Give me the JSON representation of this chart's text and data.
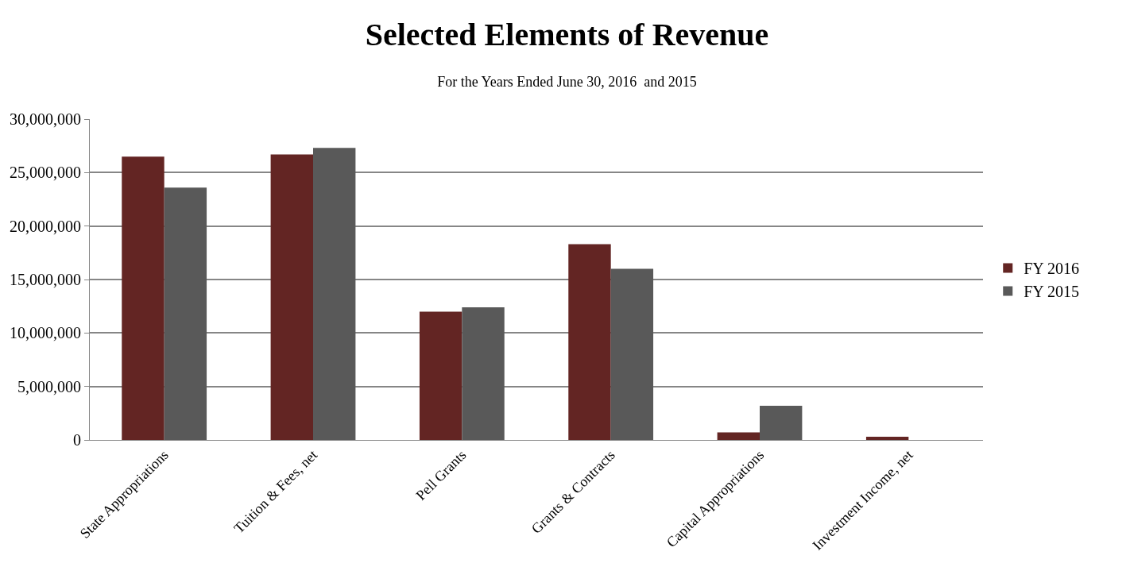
{
  "chart_data": {
    "type": "bar",
    "title": "Selected Elements of Revenue",
    "subtitle": "For the Years Ended June 30, 2016  and 2015",
    "categories": [
      "State Appropriations",
      "Tuition & Fees, net",
      "Pell Grants",
      "Grants & Contracts",
      "Capital Appropriations",
      "Investment Income, net"
    ],
    "series": [
      {
        "name": "FY 2016",
        "color": "#632523",
        "values": [
          26500000,
          26700000,
          12000000,
          18300000,
          700000,
          300000
        ]
      },
      {
        "name": "FY 2015",
        "color": "#595959",
        "values": [
          23600000,
          27300000,
          12400000,
          16000000,
          3200000,
          0
        ]
      }
    ],
    "ylim": [
      0,
      30000000
    ],
    "yticks": [
      {
        "value": 0,
        "label": "0"
      },
      {
        "value": 5000000,
        "label": "5,000,000"
      },
      {
        "value": 10000000,
        "label": "10,000,000"
      },
      {
        "value": 15000000,
        "label": "15,000,000"
      },
      {
        "value": 20000000,
        "label": "20,000,000"
      },
      {
        "value": 25000000,
        "label": "25,000,000"
      },
      {
        "value": 30000000,
        "label": "30,000,000"
      }
    ],
    "grid": "y",
    "legend": "right"
  }
}
